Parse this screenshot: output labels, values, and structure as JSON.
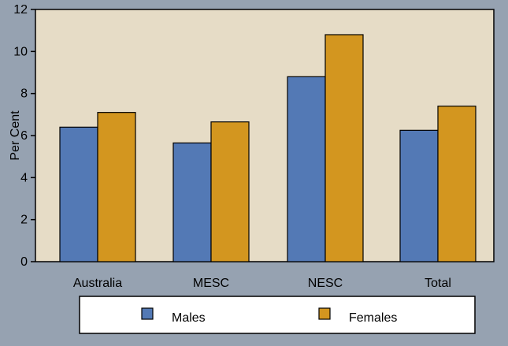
{
  "chart_data": {
    "type": "bar",
    "categories": [
      "Australia",
      "MESC",
      "NESC",
      "Total"
    ],
    "series": [
      {
        "name": "Males",
        "values": [
          6.4,
          5.65,
          8.8,
          6.25
        ],
        "color": "#5379b5"
      },
      {
        "name": "Females",
        "values": [
          7.1,
          6.65,
          10.8,
          7.4
        ],
        "color": "#d3961f"
      }
    ],
    "title": "",
    "xlabel": "",
    "ylabel": "Per Cent",
    "ylim": [
      0,
      12
    ],
    "yticks": [
      0,
      2,
      4,
      6,
      8,
      10,
      12
    ],
    "grid": false,
    "legend_position": "bottom",
    "colors": {
      "background": "#96a2b1",
      "plot_background": "#e6dcc6",
      "legend_background": "#ffffff"
    }
  }
}
